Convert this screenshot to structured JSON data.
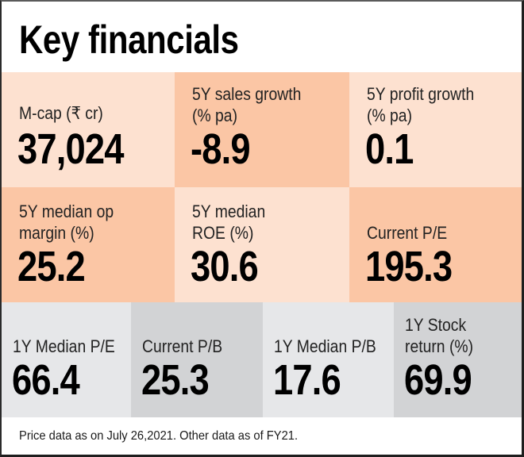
{
  "title": "Key financials",
  "colors": {
    "light_peach": "#fde1d0",
    "dark_peach": "#fbc6a5",
    "light_grey": "#e6e7e9",
    "dark_grey": "#d2d3d5"
  },
  "metrics_row1": [
    {
      "label_lines": [
        "M-cap (₹ cr)"
      ],
      "value": "37,024"
    },
    {
      "label_lines": [
        "5Y sales growth",
        "(% pa)"
      ],
      "value": "-8.9"
    },
    {
      "label_lines": [
        "5Y profit growth",
        "(% pa)"
      ],
      "value": "0.1"
    }
  ],
  "metrics_row2": [
    {
      "label_lines": [
        "5Y median op",
        "margin (%)"
      ],
      "value": "25.2"
    },
    {
      "label_lines": [
        "5Y median",
        "ROE (%)"
      ],
      "value": "30.6"
    },
    {
      "label_lines": [
        "Current P/E"
      ],
      "value": "195.3"
    }
  ],
  "metrics_row3": [
    {
      "label_lines": [
        "1Y Median P/E"
      ],
      "value": "66.4"
    },
    {
      "label_lines": [
        "Current P/B"
      ],
      "value": "25.3"
    },
    {
      "label_lines": [
        "1Y Median P/B"
      ],
      "value": "17.6"
    },
    {
      "label_lines": [
        "1Y Stock",
        "return (%)"
      ],
      "value": "69.9"
    }
  ],
  "footer": "Price data as on July 26,2021. Other data as of FY21."
}
